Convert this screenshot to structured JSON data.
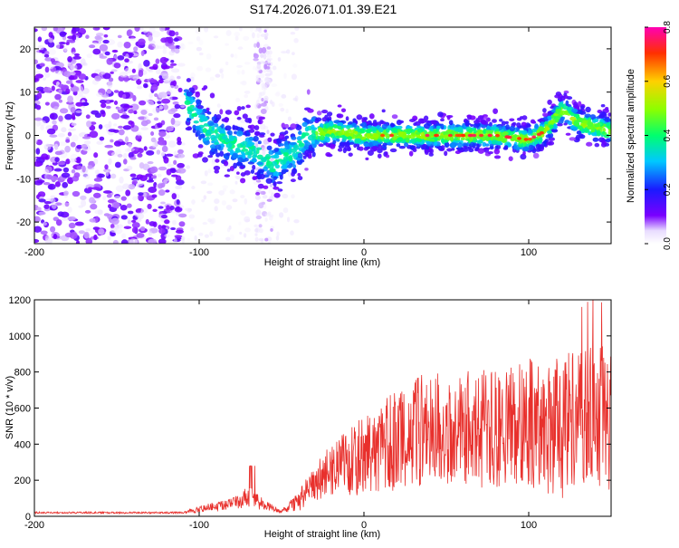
{
  "title": "S174.2026.071.01.39.E21",
  "chart_data": [
    {
      "type": "heatmap",
      "xlabel": "Height of straight line (km)",
      "ylabel": "Frequency (Hz)",
      "xlim": [
        -200,
        150
      ],
      "ylim": [
        -25,
        25
      ],
      "xticks": [
        -200,
        -100,
        0,
        100
      ],
      "yticks": [
        -20,
        -10,
        0,
        10,
        20
      ],
      "colorbar": {
        "label": "Normalized spectral amplitude",
        "range": [
          0,
          0.8
        ],
        "ticks": [
          0,
          0.2,
          0.4,
          0.6,
          0.8
        ],
        "tick_labels": [
          "0.0",
          "0.2",
          "0.4",
          "0.6",
          "0.8"
        ],
        "colormap": "rainbow"
      },
      "ridge": {
        "description": "frequency track of peak amplitude",
        "x": [
          -107,
          -95,
          -80,
          -65,
          -55,
          -48,
          -42,
          -35,
          -20,
          0,
          20,
          50,
          80,
          100,
          110,
          120,
          130,
          140,
          150
        ],
        "y": [
          7,
          1,
          -2,
          -4,
          -7,
          -5,
          -4,
          0,
          1,
          0,
          0,
          0,
          0,
          -1,
          1,
          6,
          3,
          2,
          1
        ]
      }
    },
    {
      "type": "line",
      "xlabel": "Height of straight line (km)",
      "ylabel": "SNR (10 * v/v)",
      "xlim": [
        -200,
        150
      ],
      "ylim": [
        0,
        1200
      ],
      "xticks": [
        -200,
        -100,
        0,
        100
      ],
      "yticks": [
        0,
        200,
        400,
        600,
        800,
        1000,
        1200
      ],
      "color": "#e8302c",
      "envelope": {
        "description": "approximate mean and spread of noisy SNR trace",
        "x": [
          -200,
          -150,
          -110,
          -100,
          -80,
          -70,
          -60,
          -50,
          -40,
          -30,
          -20,
          0,
          20,
          40,
          60,
          80,
          100,
          120,
          150
        ],
        "mean": [
          20,
          20,
          20,
          40,
          70,
          110,
          60,
          25,
          80,
          180,
          250,
          330,
          420,
          500,
          490,
          480,
          520,
          500,
          540
        ],
        "spread": [
          5,
          5,
          5,
          20,
          30,
          60,
          30,
          10,
          60,
          100,
          150,
          230,
          280,
          320,
          320,
          330,
          360,
          400,
          420
        ]
      }
    }
  ]
}
